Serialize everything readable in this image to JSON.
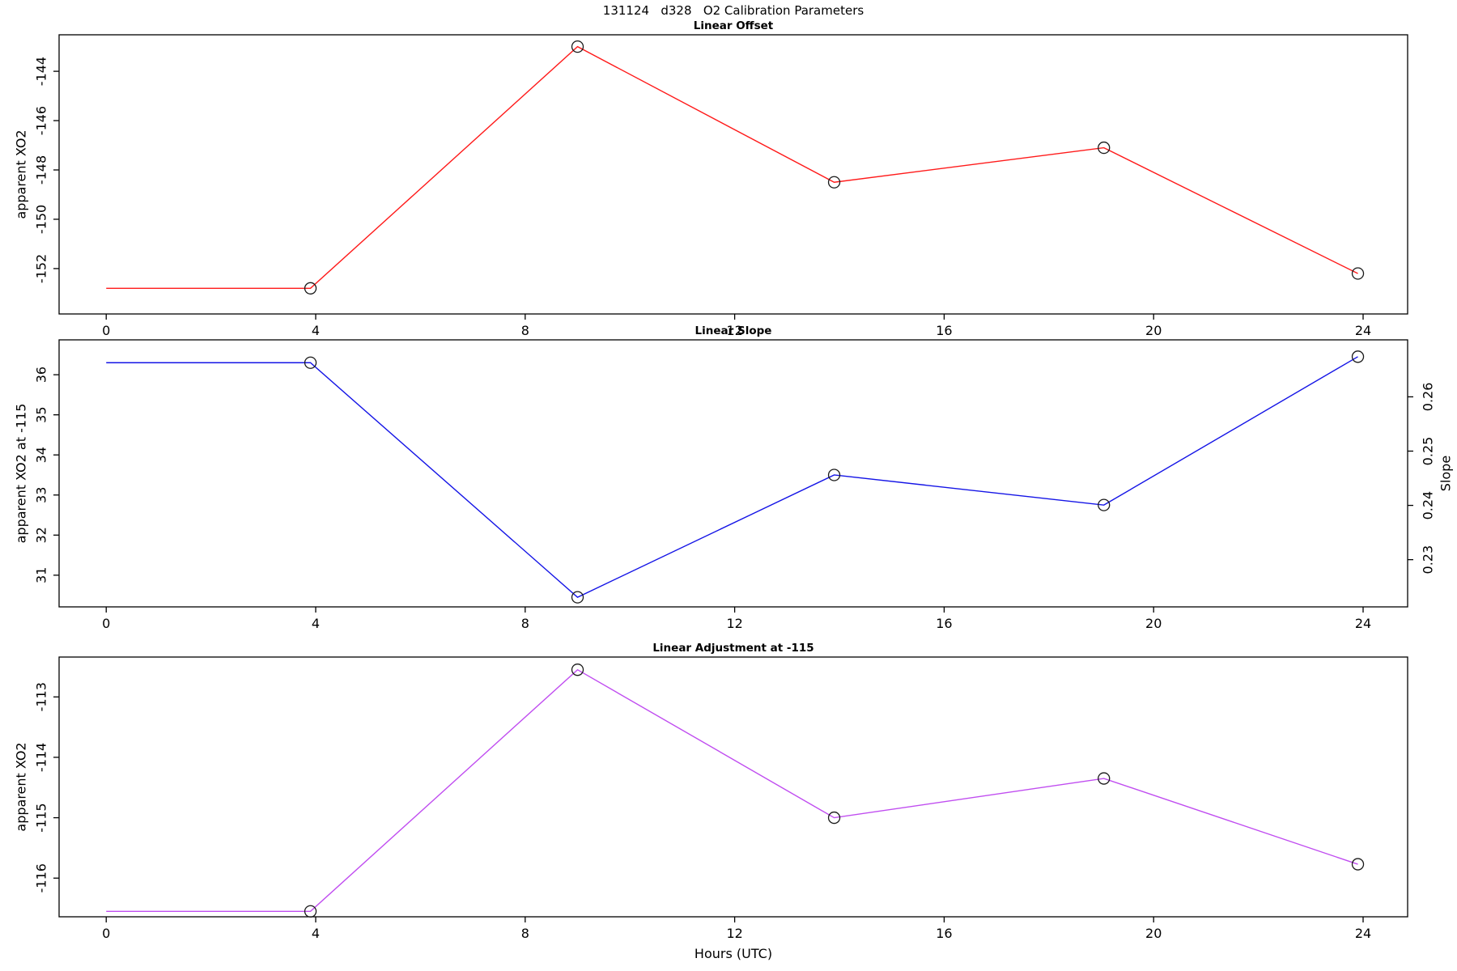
{
  "page_title": "131124   d328   O2 Calibration Parameters",
  "xlabel": "Hours (UTC)",
  "chart_data": [
    {
      "type": "line",
      "title": "Linear Offset",
      "ylabel": "apparent XO2",
      "color": "#ff1a1a",
      "marker": "open-circle",
      "marker_color": "#1a1a1a",
      "x": [
        0,
        3.9,
        9.0,
        13.9,
        19.05,
        23.9
      ],
      "y": [
        -152.8,
        -152.8,
        -143.0,
        -148.5,
        -147.1,
        -152.2
      ],
      "markers_from_index": 1,
      "xticks": [
        0,
        4,
        8,
        12,
        16,
        20,
        24
      ],
      "yticks": [
        -152,
        -150,
        -148,
        -146,
        -144
      ],
      "xlim": [
        -0.9,
        24.85
      ],
      "ylim": [
        -153.84,
        -142.52
      ],
      "grid": false,
      "legend": "none"
    },
    {
      "type": "line",
      "title": "Linear Slope",
      "ylabel": "apparent XO2 at -115",
      "y2label": "Slope",
      "color": "#1414e6",
      "marker": "open-circle",
      "marker_color": "#1a1a1a",
      "x": [
        0,
        3.9,
        9.0,
        13.9,
        19.05,
        23.9
      ],
      "y": [
        36.3,
        36.3,
        30.45,
        33.5,
        32.75,
        36.45
      ],
      "markers_from_index": 1,
      "xticks": [
        0,
        4,
        8,
        12,
        16,
        20,
        24
      ],
      "yticks": [
        31,
        32,
        33,
        34,
        35,
        36
      ],
      "y2ticks": [
        0.23,
        0.24,
        0.25,
        0.26
      ],
      "xlim": [
        -0.9,
        24.85
      ],
      "ylim": [
        30.21,
        36.87
      ],
      "y2lim": [
        0.2213,
        0.2705
      ],
      "grid": false,
      "legend": "none"
    },
    {
      "type": "line",
      "title": "Linear Adjustment at -115",
      "ylabel": "apparent XO2",
      "color": "#c04df0",
      "marker": "open-circle",
      "marker_color": "#1a1a1a",
      "x": [
        0,
        3.9,
        9.0,
        13.9,
        19.05,
        23.9
      ],
      "y": [
        -116.55,
        -116.55,
        -112.55,
        -115.0,
        -114.35,
        -115.77
      ],
      "markers_from_index": 1,
      "xticks": [
        0,
        4,
        8,
        12,
        16,
        20,
        24
      ],
      "yticks": [
        -116,
        -115,
        -114,
        -113
      ],
      "xlim": [
        -0.9,
        24.85
      ],
      "ylim": [
        -116.64,
        -112.34
      ],
      "xlabel": "Hours (UTC)",
      "grid": false,
      "legend": "none"
    }
  ]
}
